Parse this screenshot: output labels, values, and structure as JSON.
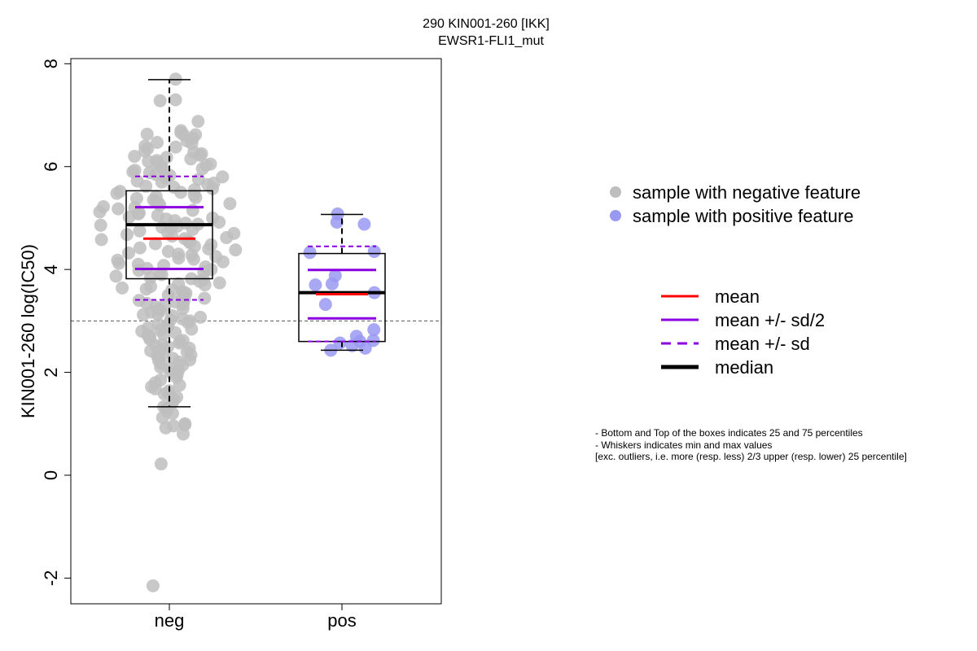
{
  "chart_data": {
    "type": "scatter",
    "title": "290 KIN001-260 [IKK]",
    "subtitle": "EWSR1-FLI1_mut",
    "ylabel": "KIN001-260 log(IC50)",
    "categories": [
      "neg",
      "pos"
    ],
    "yticks": [
      "-2",
      "0",
      "2",
      "4",
      "6",
      "8"
    ],
    "ylim": [
      -2.5,
      8.1
    ],
    "threshold": 3.0,
    "colors": {
      "neg": "#bebebe",
      "pos": "#9999f2",
      "mean": "#ff0000",
      "sd": "#8a00e0",
      "median": "#000000"
    },
    "groups": [
      {
        "name": "neg",
        "box": {
          "q1": 3.82,
          "median": 4.87,
          "q3": 5.53,
          "whisker_low": 1.33,
          "whisker_high": 7.69
        },
        "mean": 4.6,
        "mean_minus_half_sd": 4.01,
        "mean_plus_half_sd": 5.21,
        "mean_minus_sd": 3.41,
        "mean_plus_sd": 5.81,
        "points": [
          7.7,
          7.28,
          7.3,
          6.88,
          6.7,
          6.66,
          6.63,
          6.62,
          6.62,
          6.55,
          6.5,
          6.47,
          6.45,
          6.4,
          6.38,
          6.35,
          6.3,
          6.28,
          6.25,
          6.22,
          6.2,
          6.18,
          6.15,
          6.12,
          6.1,
          6.08,
          6.05,
          6.03,
          6.0,
          5.98,
          5.96,
          5.93,
          5.9,
          5.88,
          5.85,
          5.83,
          5.8,
          5.78,
          5.75,
          5.72,
          5.7,
          5.68,
          5.65,
          5.62,
          5.6,
          5.57,
          5.55,
          5.52,
          5.5,
          5.48,
          5.45,
          5.42,
          5.4,
          5.38,
          5.35,
          5.32,
          5.3,
          5.28,
          5.25,
          5.22,
          5.2,
          5.18,
          5.15,
          5.12,
          5.1,
          5.08,
          5.05,
          5.02,
          5.0,
          4.98,
          4.95,
          4.92,
          4.9,
          4.88,
          4.86,
          4.84,
          4.82,
          4.8,
          4.78,
          4.75,
          4.72,
          4.7,
          4.68,
          4.65,
          4.62,
          4.6,
          4.58,
          4.55,
          4.52,
          4.5,
          4.48,
          4.45,
          4.42,
          4.4,
          4.38,
          4.35,
          4.32,
          4.3,
          4.28,
          4.25,
          4.22,
          4.2,
          4.18,
          4.15,
          4.12,
          4.1,
          4.08,
          4.05,
          4.02,
          4.0,
          3.98,
          3.95,
          3.92,
          3.9,
          3.87,
          3.84,
          3.82,
          3.8,
          3.77,
          3.74,
          3.72,
          3.7,
          3.67,
          3.64,
          3.62,
          3.6,
          3.57,
          3.54,
          3.52,
          3.5,
          3.47,
          3.44,
          3.42,
          3.4,
          3.37,
          3.34,
          3.32,
          3.3,
          3.27,
          3.24,
          3.22,
          3.2,
          3.17,
          3.14,
          3.12,
          3.1,
          3.07,
          3.04,
          3.02,
          3.0,
          2.97,
          2.94,
          2.92,
          2.9,
          2.87,
          2.84,
          2.82,
          2.8,
          2.77,
          2.74,
          2.72,
          2.7,
          2.67,
          2.64,
          2.62,
          2.6,
          2.57,
          2.54,
          2.52,
          2.5,
          2.47,
          2.44,
          2.42,
          2.4,
          2.37,
          2.34,
          2.32,
          2.3,
          2.27,
          2.24,
          2.22,
          2.2,
          2.17,
          2.14,
          2.1,
          2.07,
          2.04,
          2.0,
          1.95,
          1.9,
          1.85,
          1.8,
          1.75,
          1.72,
          1.68,
          1.64,
          1.6,
          1.58,
          1.52,
          1.47,
          1.4,
          1.33,
          1.3,
          1.25,
          1.2,
          1.12,
          1.0,
          0.98,
          0.96,
          0.92,
          0.8,
          0.22,
          -2.15
        ]
      },
      {
        "name": "pos",
        "box": {
          "q1": 2.6,
          "median": 3.55,
          "q3": 4.31,
          "whisker_low": 2.43,
          "whisker_high": 5.07
        },
        "mean": 3.52,
        "mean_minus_half_sd": 3.05,
        "mean_plus_half_sd": 3.99,
        "mean_minus_sd": 2.6,
        "mean_plus_sd": 4.45,
        "points": [
          5.08,
          4.92,
          4.88,
          4.35,
          4.33,
          3.88,
          3.72,
          3.7,
          3.55,
          3.32,
          2.83,
          2.7,
          2.62,
          2.6,
          2.57,
          2.52,
          2.47,
          2.43
        ]
      }
    ],
    "legend": {
      "points": [
        "sample with negative feature",
        "sample with positive feature"
      ],
      "lines": [
        "mean",
        "mean +/- sd/2",
        "mean +/- sd",
        "median"
      ]
    },
    "notes": [
      "- Bottom and Top of the boxes indicates 25 and 75 percentiles",
      "- Whiskers indicates min and max values",
      "[exc. outliers, i.e. more (resp. less) 2/3 upper (resp. lower) 25 percentile]"
    ]
  }
}
